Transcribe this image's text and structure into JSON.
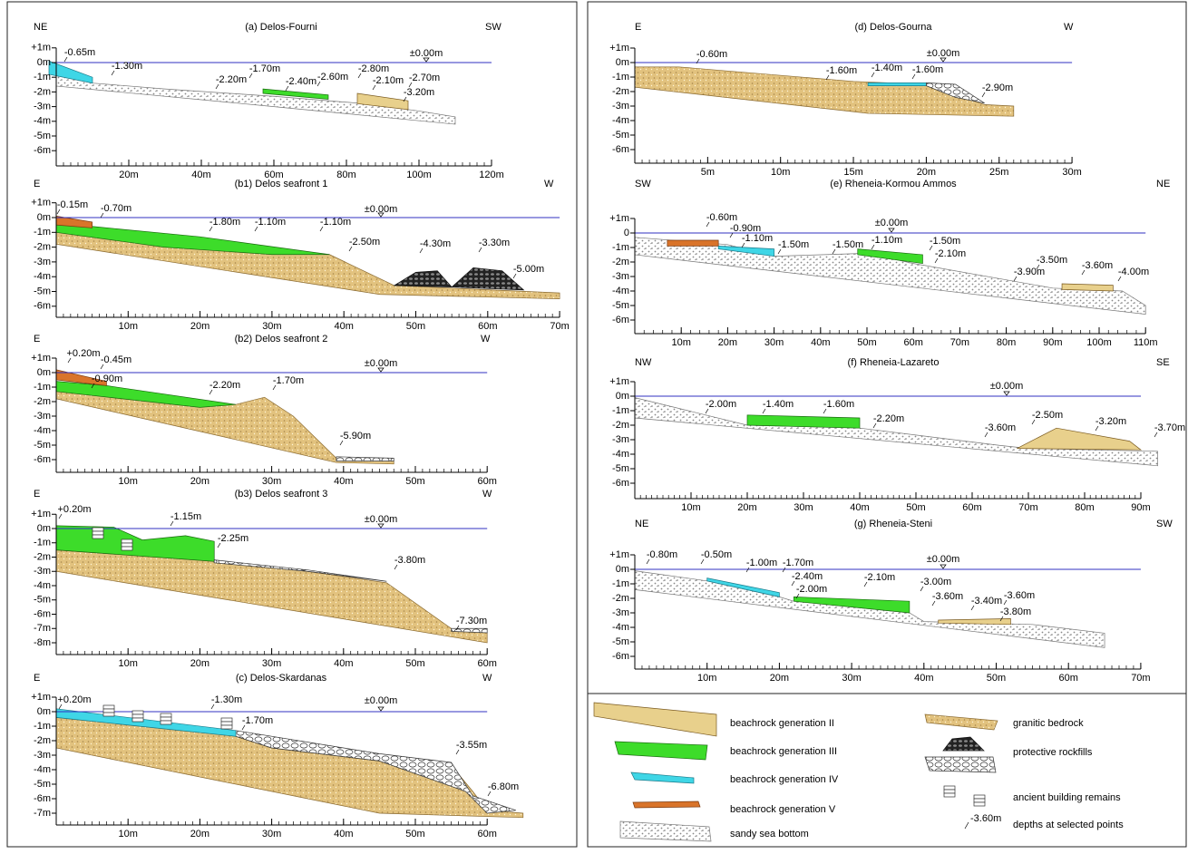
{
  "panels": [
    {
      "title": "(a) Delos-Fourni",
      "left": "NE",
      "right": "SW",
      "sea_level": "±0.00m",
      "y_ticks": [
        "+1m",
        "0m",
        "-1m",
        "-2m",
        "-3m",
        "-4m",
        "-5m",
        "-6m"
      ],
      "x_ticks": [
        "20m",
        "40m",
        "60m",
        "80m",
        "100m",
        "120m"
      ],
      "depths": [
        "-0.65m",
        "-1.30m",
        "-1.70m",
        "-2.20m",
        "-2.40m",
        "-2.60m",
        "-2.80m",
        "-2.10m",
        "-2.70m",
        "-3.20m"
      ]
    },
    {
      "title": "(b1) Delos seafront 1",
      "left": "E",
      "right": "W",
      "sea_level": "±0.00m",
      "y_ticks": [
        "+1m",
        "0m",
        "-1m",
        "-2m",
        "-3m",
        "-4m",
        "-5m",
        "-6m"
      ],
      "x_ticks": [
        "10m",
        "20m",
        "30m",
        "40m",
        "50m",
        "60m",
        "70m"
      ],
      "depths": [
        "-0.15m",
        "-0.70m",
        "-1.80m",
        "-1.10m",
        "-1.10m",
        "-2.50m",
        "-4.30m",
        "-3.30m",
        "-5.00m"
      ]
    },
    {
      "title": "(b2) Delos seafront 2",
      "left": "E",
      "right": "W",
      "sea_level": "±0.00m",
      "y_ticks": [
        "+1m",
        "0m",
        "-1m",
        "-2m",
        "-3m",
        "-4m",
        "-5m",
        "-6m"
      ],
      "x_ticks": [
        "10m",
        "20m",
        "30m",
        "40m",
        "50m",
        "60m"
      ],
      "depths": [
        "+0.20m",
        "-0.45m",
        "-0.90m",
        "-2.20m",
        "-1.70m",
        "-5.90m"
      ]
    },
    {
      "title": "(b3) Delos seafront 3",
      "left": "E",
      "right": "W",
      "sea_level": "±0.00m",
      "y_ticks": [
        "+1m",
        "0m",
        "-1m",
        "-2m",
        "-3m",
        "-4m",
        "-5m",
        "-6m",
        "-7m",
        "-8m"
      ],
      "x_ticks": [
        "10m",
        "20m",
        "30m",
        "40m",
        "50m",
        "60m"
      ],
      "depths": [
        "+0.20m",
        "-1.15m",
        "-2.25m",
        "-3.80m",
        "-7.30m"
      ]
    },
    {
      "title": "(c) Delos-Skardanas",
      "left": "E",
      "right": "W",
      "sea_level": "±0.00m",
      "y_ticks": [
        "+1m",
        "0m",
        "-1m",
        "-2m",
        "-3m",
        "-4m",
        "-5m",
        "-6m",
        "-7m"
      ],
      "x_ticks": [
        "10m",
        "20m",
        "30m",
        "40m",
        "50m",
        "60m"
      ],
      "depths": [
        "+0.20m",
        "-1.30m",
        "-1.70m",
        "-3.55m",
        "-6.80m"
      ]
    },
    {
      "title": "(d) Delos-Gourna",
      "left": "E",
      "right": "W",
      "sea_level": "±0.00m",
      "y_ticks": [
        "+1m",
        "0m",
        "-1m",
        "-2m",
        "-3m",
        "-4m",
        "-5m",
        "-6m"
      ],
      "x_ticks": [
        "5m",
        "10m",
        "15m",
        "20m",
        "25m",
        "30m"
      ],
      "depths": [
        "-0.60m",
        "-1.60m",
        "-1.40m",
        "-1.60m",
        "-2.90m"
      ]
    },
    {
      "title": "(e) Rheneia-Kormou Ammos",
      "left": "SW",
      "right": "NE",
      "sea_level": "±0.00m",
      "y_ticks": [
        "+1m",
        "0",
        "-1m",
        "-2m",
        "-3m",
        "-4m",
        "-5m",
        "-6m"
      ],
      "x_ticks": [
        "10m",
        "20m",
        "30m",
        "40m",
        "50m",
        "60m",
        "70m",
        "80m",
        "90m",
        "100m",
        "110m"
      ],
      "depths": [
        "-0.60m",
        "-0.90m",
        "-1.10m",
        "-1.50m",
        "-1.50m",
        "-1.10m",
        "-1.50m",
        "-2.10m",
        "-3.50m",
        "-3.90m",
        "-3.60m",
        "-4.00m"
      ]
    },
    {
      "title": "(f) Rheneia-Lazareto",
      "left": "NW",
      "right": "SE",
      "sea_level": "±0.00m",
      "y_ticks": [
        "+1m",
        "0m",
        "-1m",
        "-2m",
        "-3m",
        "-4m",
        "-5m",
        "-6m"
      ],
      "x_ticks": [
        "10m",
        "20m",
        "30m",
        "40m",
        "50m",
        "60m",
        "70m",
        "80m",
        "90m"
      ],
      "depths": [
        "-2.00m",
        "-1.40m",
        "-1.60m",
        "-2.20m",
        "-3.60m",
        "-2.50m",
        "-3.20m",
        "-3.70m"
      ]
    },
    {
      "title": "(g) Rheneia-Steni",
      "left": "NE",
      "right": "SW",
      "sea_level": "±0.00m",
      "y_ticks": [
        "+1m",
        "0m",
        "-1m",
        "-2m",
        "-3m",
        "-4m",
        "-5m",
        "-6m"
      ],
      "x_ticks": [
        "10m",
        "20m",
        "30m",
        "40m",
        "50m",
        "60m",
        "70m"
      ],
      "depths": [
        "-0.80m",
        "-0.50m",
        "-1.00m",
        "-1.70m",
        "-2.40m",
        "-2.00m",
        "-2.10m",
        "-3.00m",
        "-3.60m",
        "-3.40m",
        "-3.60m",
        "-3.80m"
      ]
    }
  ],
  "legend": {
    "items": [
      "beachrock generation II",
      "beachrock generation III",
      "beachrock generation IV",
      "beachrock generation V",
      "sandy sea bottom",
      "granitic bedrock",
      "protective rockfills",
      "ancient building remains",
      "depths at selected points"
    ],
    "depth_sample": "-3.60m"
  }
}
